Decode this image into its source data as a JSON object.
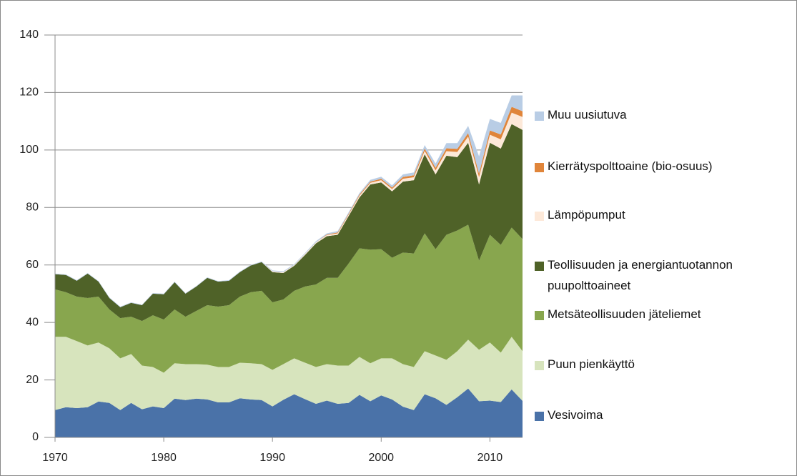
{
  "chart_data": {
    "type": "stacked-area",
    "x": [
      1970,
      1971,
      1972,
      1973,
      1974,
      1975,
      1976,
      1977,
      1978,
      1979,
      1980,
      1981,
      1982,
      1983,
      1984,
      1985,
      1986,
      1987,
      1988,
      1989,
      1990,
      1991,
      1992,
      1993,
      1994,
      1995,
      1996,
      1997,
      1998,
      1999,
      2000,
      2001,
      2002,
      2003,
      2004,
      2005,
      2006,
      2007,
      2008,
      2009,
      2010,
      2011,
      2012,
      2013
    ],
    "xlim": [
      1970,
      2013
    ],
    "xticks": [
      1970,
      1980,
      1990,
      2000,
      2010
    ],
    "ylim": [
      0,
      140
    ],
    "yticks": [
      0,
      20,
      40,
      60,
      80,
      100,
      120,
      140
    ],
    "grid": true,
    "series": [
      {
        "name": "Vesivoima",
        "color": "#4a72a8",
        "values": [
          9.5,
          10.5,
          10.2,
          10.5,
          12.5,
          12,
          9.5,
          12,
          9.8,
          10.8,
          10.2,
          13.5,
          13,
          13.5,
          13.2,
          12.2,
          12.2,
          13.6,
          13.2,
          13,
          10.8,
          13.1,
          15,
          13.3,
          11.7,
          12.8,
          11.7,
          12,
          14.8,
          12.6,
          14.6,
          13.2,
          10.7,
          9.5,
          15,
          13.6,
          11.3,
          14,
          17,
          12.6,
          12.8,
          12.3,
          16.7,
          12.7
        ]
      },
      {
        "name": "Puun pienkäyttö",
        "color": "#d7e4bd",
        "values": [
          25.5,
          24.5,
          23.3,
          21.5,
          20.5,
          19,
          18,
          17,
          15.2,
          13.7,
          12.3,
          12.3,
          12.5,
          12,
          12.1,
          12.3,
          12.3,
          12.4,
          12.6,
          12.5,
          12.7,
          12.4,
          12.5,
          12.7,
          12.8,
          12.7,
          13.3,
          13,
          13.2,
          13.2,
          12.9,
          14.3,
          14.8,
          15,
          15,
          14.9,
          15.7,
          16,
          17,
          17.9,
          20.2,
          17.2,
          18.3,
          17.3
        ]
      },
      {
        "name": "Metsäteollisuuden jäteliemet",
        "color": "#88a64e",
        "values": [
          16.5,
          15.5,
          15.5,
          16.5,
          16,
          13.5,
          14,
          13,
          15.5,
          18,
          18.5,
          18.7,
          16.5,
          18.5,
          20.7,
          21,
          21.5,
          23,
          24.7,
          25.5,
          23.5,
          22.5,
          23.5,
          26.5,
          28.7,
          30,
          30.5,
          35.5,
          37.8,
          39.5,
          38,
          35,
          38.8,
          39.5,
          41,
          37,
          43.5,
          42,
          40,
          31,
          37.5,
          37.5,
          38,
          39
        ]
      },
      {
        "name": "Teollisuuden ja energiantuotannon puupolttoaineet",
        "color": "#4f6228",
        "values": [
          5.3,
          6,
          5.5,
          8.5,
          5.2,
          4,
          3.8,
          4.8,
          5.5,
          7.5,
          8.8,
          9.5,
          8,
          8.5,
          9.5,
          8.7,
          8.5,
          8.5,
          9.3,
          10,
          10.5,
          9.2,
          8.7,
          11,
          14.3,
          14.5,
          15,
          16.5,
          17.7,
          22.7,
          23.2,
          23.1,
          24.7,
          25.5,
          27.5,
          26,
          27.5,
          25.5,
          28.5,
          26.5,
          32,
          33.5,
          36,
          38
        ]
      },
      {
        "name": "Lämpöpumput",
        "color": "#fde9d9",
        "values": [
          0,
          0,
          0,
          0,
          0,
          0,
          0,
          0,
          0,
          0,
          0,
          0,
          0,
          0,
          0,
          0,
          0,
          0,
          0,
          0,
          0.3,
          0.3,
          0.3,
          0.4,
          0.4,
          0.4,
          0.5,
          0.5,
          0.6,
          0.6,
          0.8,
          0.8,
          1,
          1,
          1.2,
          1.4,
          1.6,
          1.8,
          2.2,
          2.5,
          2.8,
          3.2,
          4,
          4.5
        ]
      },
      {
        "name": "Kierrätyspolttoaine (bio-osuus)",
        "color": "#e0853a",
        "values": [
          0,
          0,
          0,
          0,
          0,
          0,
          0,
          0,
          0,
          0,
          0,
          0,
          0,
          0,
          0,
          0,
          0,
          0,
          0,
          0,
          0,
          0,
          0,
          0,
          0,
          0.2,
          0.3,
          0.3,
          0.4,
          0.4,
          0.5,
          0.5,
          0.6,
          0.7,
          0.8,
          0.9,
          1,
          1.1,
          1.2,
          1.3,
          1.5,
          1.7,
          2,
          2
        ]
      },
      {
        "name": "Muu uusiutuva",
        "color": "#b9cde5",
        "values": [
          0.2,
          0.2,
          0.2,
          0.2,
          0.2,
          0.2,
          0.2,
          0.2,
          0.2,
          0.2,
          0.2,
          0.2,
          0.2,
          0.2,
          0.2,
          0.2,
          0.2,
          0.2,
          0.2,
          0.2,
          0.3,
          0.3,
          0.3,
          0.3,
          0.4,
          0.4,
          0.5,
          0.5,
          0.5,
          0.6,
          0.7,
          0.8,
          0.9,
          1,
          1.2,
          1.5,
          1.8,
          2,
          2.5,
          6,
          4,
          4,
          4,
          5.5
        ]
      }
    ]
  }
}
